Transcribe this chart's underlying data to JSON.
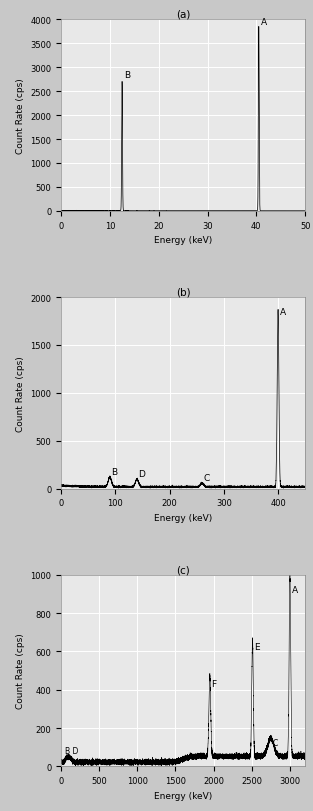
{
  "background_color": "#c8c8c8",
  "plot_bg": "#e8e8e8",
  "fig_width": 3.13,
  "fig_height": 8.12,
  "plot_a": {
    "title": "(a)",
    "xlabel": "Energy (keV)",
    "ylabel": "Count Rate (cps)",
    "xlim": [
      0,
      50
    ],
    "ylim": [
      0,
      4000
    ],
    "xticks": [
      0,
      10,
      20,
      30,
      40,
      50
    ],
    "yticks": [
      0,
      500,
      1000,
      1500,
      2000,
      2500,
      3000,
      3500,
      4000
    ],
    "peak_B_x": 12.5,
    "peak_B_y": 2700,
    "peak_A_x": 40.5,
    "peak_A_y": 3850,
    "baseline": 5
  },
  "plot_b": {
    "title": "(b)",
    "xlabel": "Energy (keV)",
    "ylabel": "Count Rate (cps)",
    "xlim": [
      0,
      450
    ],
    "ylim": [
      0,
      2000
    ],
    "xticks": [
      0,
      100,
      200,
      300,
      400
    ],
    "yticks": [
      0,
      500,
      1000,
      1500,
      2000
    ],
    "peak_B_x": 90,
    "peak_B_y": 120,
    "peak_D_x": 140,
    "peak_D_y": 100,
    "peak_C_x": 260,
    "peak_C_y": 55,
    "peak_A_x": 400,
    "peak_A_y": 1850,
    "baseline": 20
  },
  "plot_c": {
    "title": "(c)",
    "xlabel": "Energy (keV)",
    "ylabel": "Count Rate (cps)",
    "xlim": [
      0,
      3200
    ],
    "ylim": [
      0,
      1000
    ],
    "xticks": [
      0,
      500,
      1000,
      1500,
      2000,
      2500,
      3000
    ],
    "yticks": [
      0,
      200,
      400,
      600,
      800,
      1000
    ],
    "peak_B_x": 80,
    "peak_B_y": 50,
    "peak_D_x": 120,
    "peak_D_y": 45,
    "peak_F_x": 1950,
    "peak_F_y": 420,
    "peak_E_x": 2510,
    "peak_E_y": 610,
    "peak_C_x": 2750,
    "peak_C_y": 95,
    "peak_A_x": 3000,
    "peak_A_y": 950,
    "baseline": 25
  }
}
